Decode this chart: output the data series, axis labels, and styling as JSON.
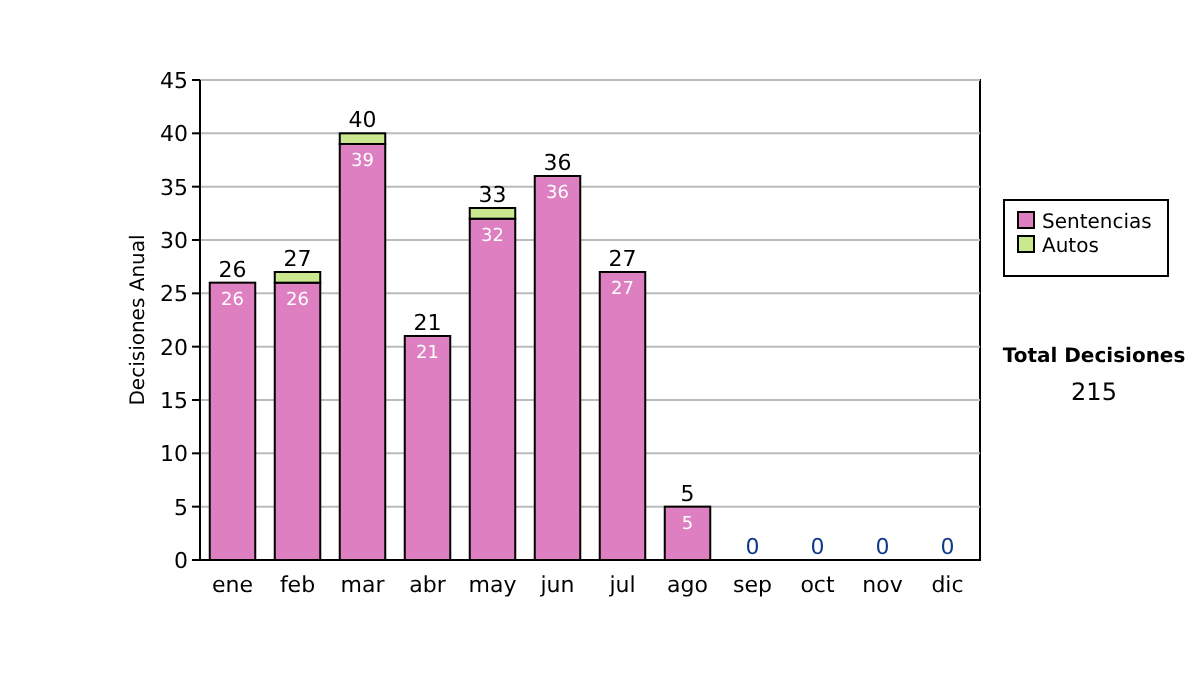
{
  "chart_data": {
    "type": "bar",
    "ylabel": "Decisiones Anual",
    "categories": [
      "ene",
      "feb",
      "mar",
      "abr",
      "may",
      "jun",
      "jul",
      "ago",
      "sep",
      "oct",
      "nov",
      "dic"
    ],
    "stacked": true,
    "ylim": [
      0,
      45
    ],
    "yticks": [
      0,
      5,
      10,
      15,
      20,
      25,
      30,
      35,
      40,
      45
    ],
    "grid": "y",
    "legend": "right",
    "series": [
      {
        "name": "Sentencias",
        "color": "#dd7fc0",
        "values": [
          26,
          26,
          39,
          21,
          32,
          36,
          27,
          5,
          0,
          0,
          0,
          0
        ],
        "value_labels": [
          "26",
          "26",
          "39",
          "21",
          "32",
          "36",
          "27",
          "5",
          null,
          null,
          null,
          null
        ]
      },
      {
        "name": "Autos",
        "color": "#cce88f",
        "values": [
          0,
          1,
          1,
          0,
          1,
          0,
          0,
          0,
          0,
          0,
          0,
          0
        ]
      }
    ],
    "totals": [
      "26",
      "27",
      "40",
      "21",
      "33",
      "36",
      "27",
      "5",
      "0",
      "0",
      "0",
      "0"
    ],
    "annotations": [
      "Total Decisiones",
      "215"
    ]
  }
}
